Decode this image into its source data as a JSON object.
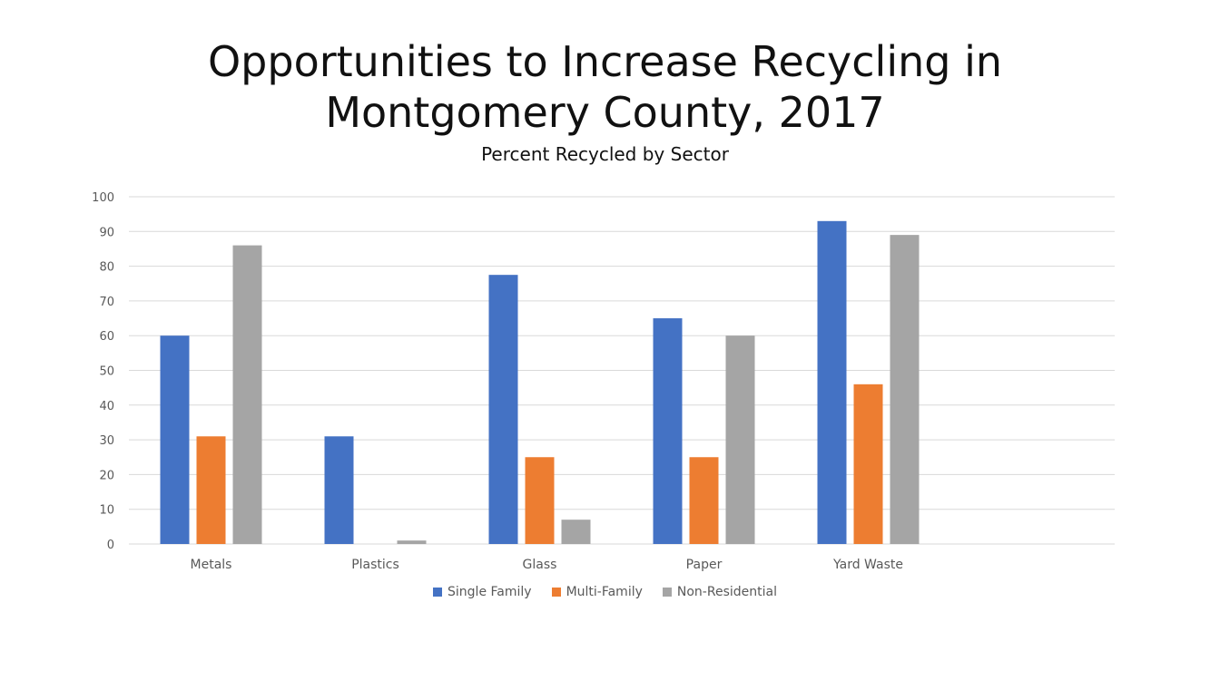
{
  "chart_data": {
    "type": "bar",
    "title": "Opportunities to Increase Recycling in\nMontgomery County, 2017",
    "subtitle": "Percent Recycled by Sector",
    "categories": [
      "Metals",
      "Plastics",
      "Glass",
      "Paper",
      "Yard Waste"
    ],
    "series": [
      {
        "name": "Single Family",
        "color": "#4472C4",
        "values": [
          60,
          31,
          77.5,
          65,
          93
        ]
      },
      {
        "name": "Multi-Family",
        "color": "#ED7D31",
        "values": [
          31,
          0,
          25,
          25,
          46
        ]
      },
      {
        "name": "Non-Residential",
        "color": "#A5A5A5",
        "values": [
          86,
          1,
          7,
          60,
          89
        ]
      }
    ],
    "ylim": [
      0,
      100
    ],
    "yticks": [
      "0",
      "10",
      "20",
      "30",
      "40",
      "50",
      "60",
      "70",
      "80",
      "90",
      "100"
    ],
    "grid": true,
    "legend_position": "bottom",
    "gridline_color": "#D9D9D9"
  }
}
